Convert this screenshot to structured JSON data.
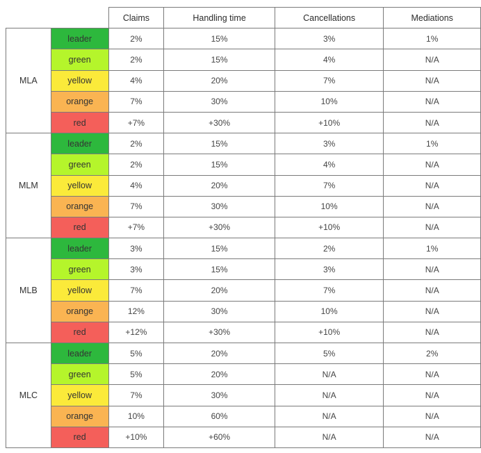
{
  "colors": {
    "leader": "#2db83d",
    "green": "#b5f52b",
    "yellow": "#fbea3a",
    "orange": "#fab452",
    "red": "#f45f5a",
    "border": "#7a7a7a"
  },
  "table": {
    "headers": [
      "Claims",
      "Handling time",
      "Cancellations",
      "Mediations"
    ],
    "groups": [
      {
        "name": "MLA",
        "rows": [
          {
            "level": "leader",
            "values": [
              "2%",
              "15%",
              "3%",
              "1%"
            ]
          },
          {
            "level": "green",
            "values": [
              "2%",
              "15%",
              "4%",
              "N/A"
            ]
          },
          {
            "level": "yellow",
            "values": [
              "4%",
              "20%",
              "7%",
              "N/A"
            ]
          },
          {
            "level": "orange",
            "values": [
              "7%",
              "30%",
              "10%",
              "N/A"
            ]
          },
          {
            "level": "red",
            "values": [
              "+7%",
              "+30%",
              "+10%",
              "N/A"
            ]
          }
        ]
      },
      {
        "name": "MLM",
        "rows": [
          {
            "level": "leader",
            "values": [
              "2%",
              "15%",
              "3%",
              "1%"
            ]
          },
          {
            "level": "green",
            "values": [
              "2%",
              "15%",
              "4%",
              "N/A"
            ]
          },
          {
            "level": "yellow",
            "values": [
              "4%",
              "20%",
              "7%",
              "N/A"
            ]
          },
          {
            "level": "orange",
            "values": [
              "7%",
              "30%",
              "10%",
              "N/A"
            ]
          },
          {
            "level": "red",
            "values": [
              "+7%",
              "+30%",
              "+10%",
              "N/A"
            ]
          }
        ]
      },
      {
        "name": "MLB",
        "rows": [
          {
            "level": "leader",
            "values": [
              "3%",
              "15%",
              "2%",
              "1%"
            ]
          },
          {
            "level": "green",
            "values": [
              "3%",
              "15%",
              "3%",
              "N/A"
            ]
          },
          {
            "level": "yellow",
            "values": [
              "7%",
              "20%",
              "7%",
              "N/A"
            ]
          },
          {
            "level": "orange",
            "values": [
              "12%",
              "30%",
              "10%",
              "N/A"
            ]
          },
          {
            "level": "red",
            "values": [
              "+12%",
              "+30%",
              "+10%",
              "N/A"
            ]
          }
        ]
      },
      {
        "name": "MLC",
        "rows": [
          {
            "level": "leader",
            "values": [
              "5%",
              "20%",
              "5%",
              "2%"
            ]
          },
          {
            "level": "green",
            "values": [
              "5%",
              "20%",
              "N/A",
              "N/A"
            ]
          },
          {
            "level": "yellow",
            "values": [
              "7%",
              "30%",
              "N/A",
              "N/A"
            ]
          },
          {
            "level": "orange",
            "values": [
              "10%",
              "60%",
              "N/A",
              "N/A"
            ]
          },
          {
            "level": "red",
            "values": [
              "+10%",
              "+60%",
              "N/A",
              "N/A"
            ]
          }
        ]
      }
    ]
  }
}
